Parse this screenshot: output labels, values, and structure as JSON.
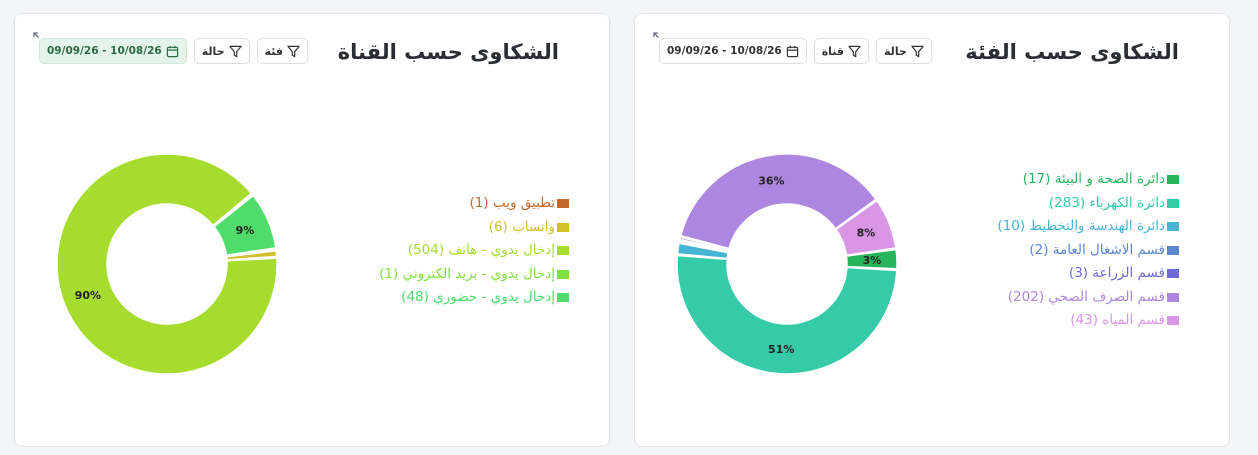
{
  "channel_card": {
    "title": "الشكاوى حسب القناة",
    "filters": {
      "category": "فئة",
      "status": "حالة",
      "date_range": "09/09/26 - 10/08/26"
    },
    "chart_data": {
      "type": "pie",
      "donut": true,
      "slices": [
        {
          "label": "تطبيق ويب",
          "count": "(1)",
          "value": 1,
          "color": "#c0692e",
          "pct_label": ""
        },
        {
          "label": "واتساب",
          "count": "(6)",
          "value": 6,
          "color": "#d2c02a",
          "pct_label": ""
        },
        {
          "label": "إدخال يدوي - هاتف",
          "count": "(504)",
          "value": 504,
          "color": "#a6dc2e",
          "pct_label": "90%"
        },
        {
          "label": "إدخال يدوي - بريد الكتروني",
          "count": "(1)",
          "value": 1,
          "color": "#7ee03f",
          "pct_label": ""
        },
        {
          "label": "إدخال يدوي - حضوري",
          "count": "(48)",
          "value": 48,
          "color": "#4fdc6b",
          "pct_label": "9%"
        }
      ]
    }
  },
  "category_card": {
    "title": "الشكاوى حسب الفئة",
    "filters": {
      "channel": "قناة",
      "status": "حالة",
      "date_range": "09/09/26 - 10/08/26"
    },
    "chart_data": {
      "type": "pie",
      "donut": true,
      "slices": [
        {
          "label": "دائرة الصحة و البيئة",
          "count": "(17)",
          "value": 17,
          "color": "#27b55c",
          "pct_label": "3%"
        },
        {
          "label": "دائرة الكهرباء",
          "count": "(283)",
          "value": 283,
          "color": "#35cba8",
          "pct_label": "51%"
        },
        {
          "label": "دائرة الهندسة والتخطيط",
          "count": "(10)",
          "value": 10,
          "color": "#45b5d3",
          "pct_label": ""
        },
        {
          "label": "قسم الاشغال العامة",
          "count": "(2)",
          "value": 2,
          "color": "#5a86d2",
          "pct_label": ""
        },
        {
          "label": "قسم الزراعة",
          "count": "(3)",
          "value": 3,
          "color": "#6e6ad8",
          "pct_label": ""
        },
        {
          "label": "قسم الصرف الصحي",
          "count": "(202)",
          "value": 202,
          "color": "#ad86df",
          "pct_label": "36%"
        },
        {
          "label": "قسم المياه",
          "count": "(43)",
          "value": 43,
          "color": "#d896e4",
          "pct_label": "8%"
        }
      ]
    }
  }
}
